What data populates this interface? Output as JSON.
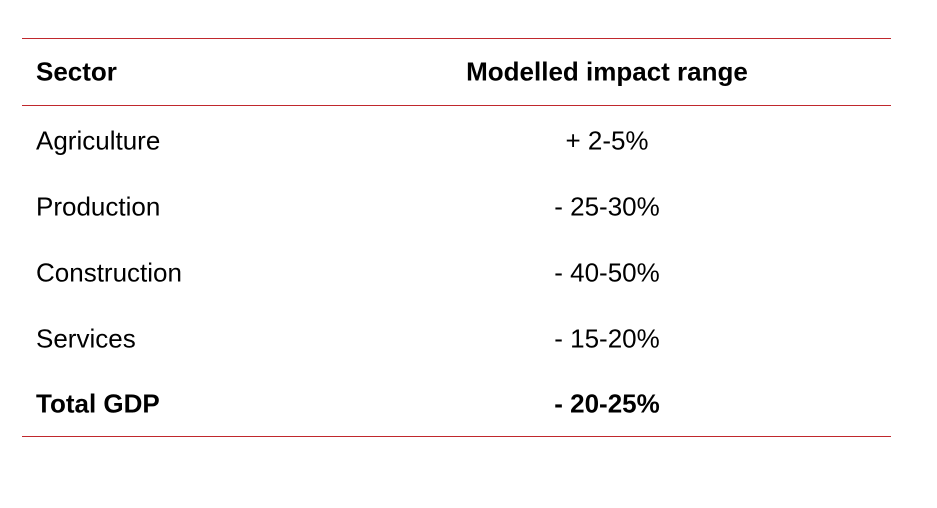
{
  "table": {
    "headers": {
      "sector": "Sector",
      "impact": "Modelled impact range"
    },
    "rows": [
      {
        "sector": "Agriculture",
        "impact": "+ 2-5%"
      },
      {
        "sector": "Production",
        "impact": "- 25-30%"
      },
      {
        "sector": "Construction",
        "impact": "- 40-50%"
      },
      {
        "sector": "Services",
        "impact": "- 15-20%"
      }
    ],
    "total": {
      "sector": "Total GDP",
      "impact": "- 20-25%"
    }
  },
  "colors": {
    "rule": "#c0282d",
    "text": "#000000"
  }
}
